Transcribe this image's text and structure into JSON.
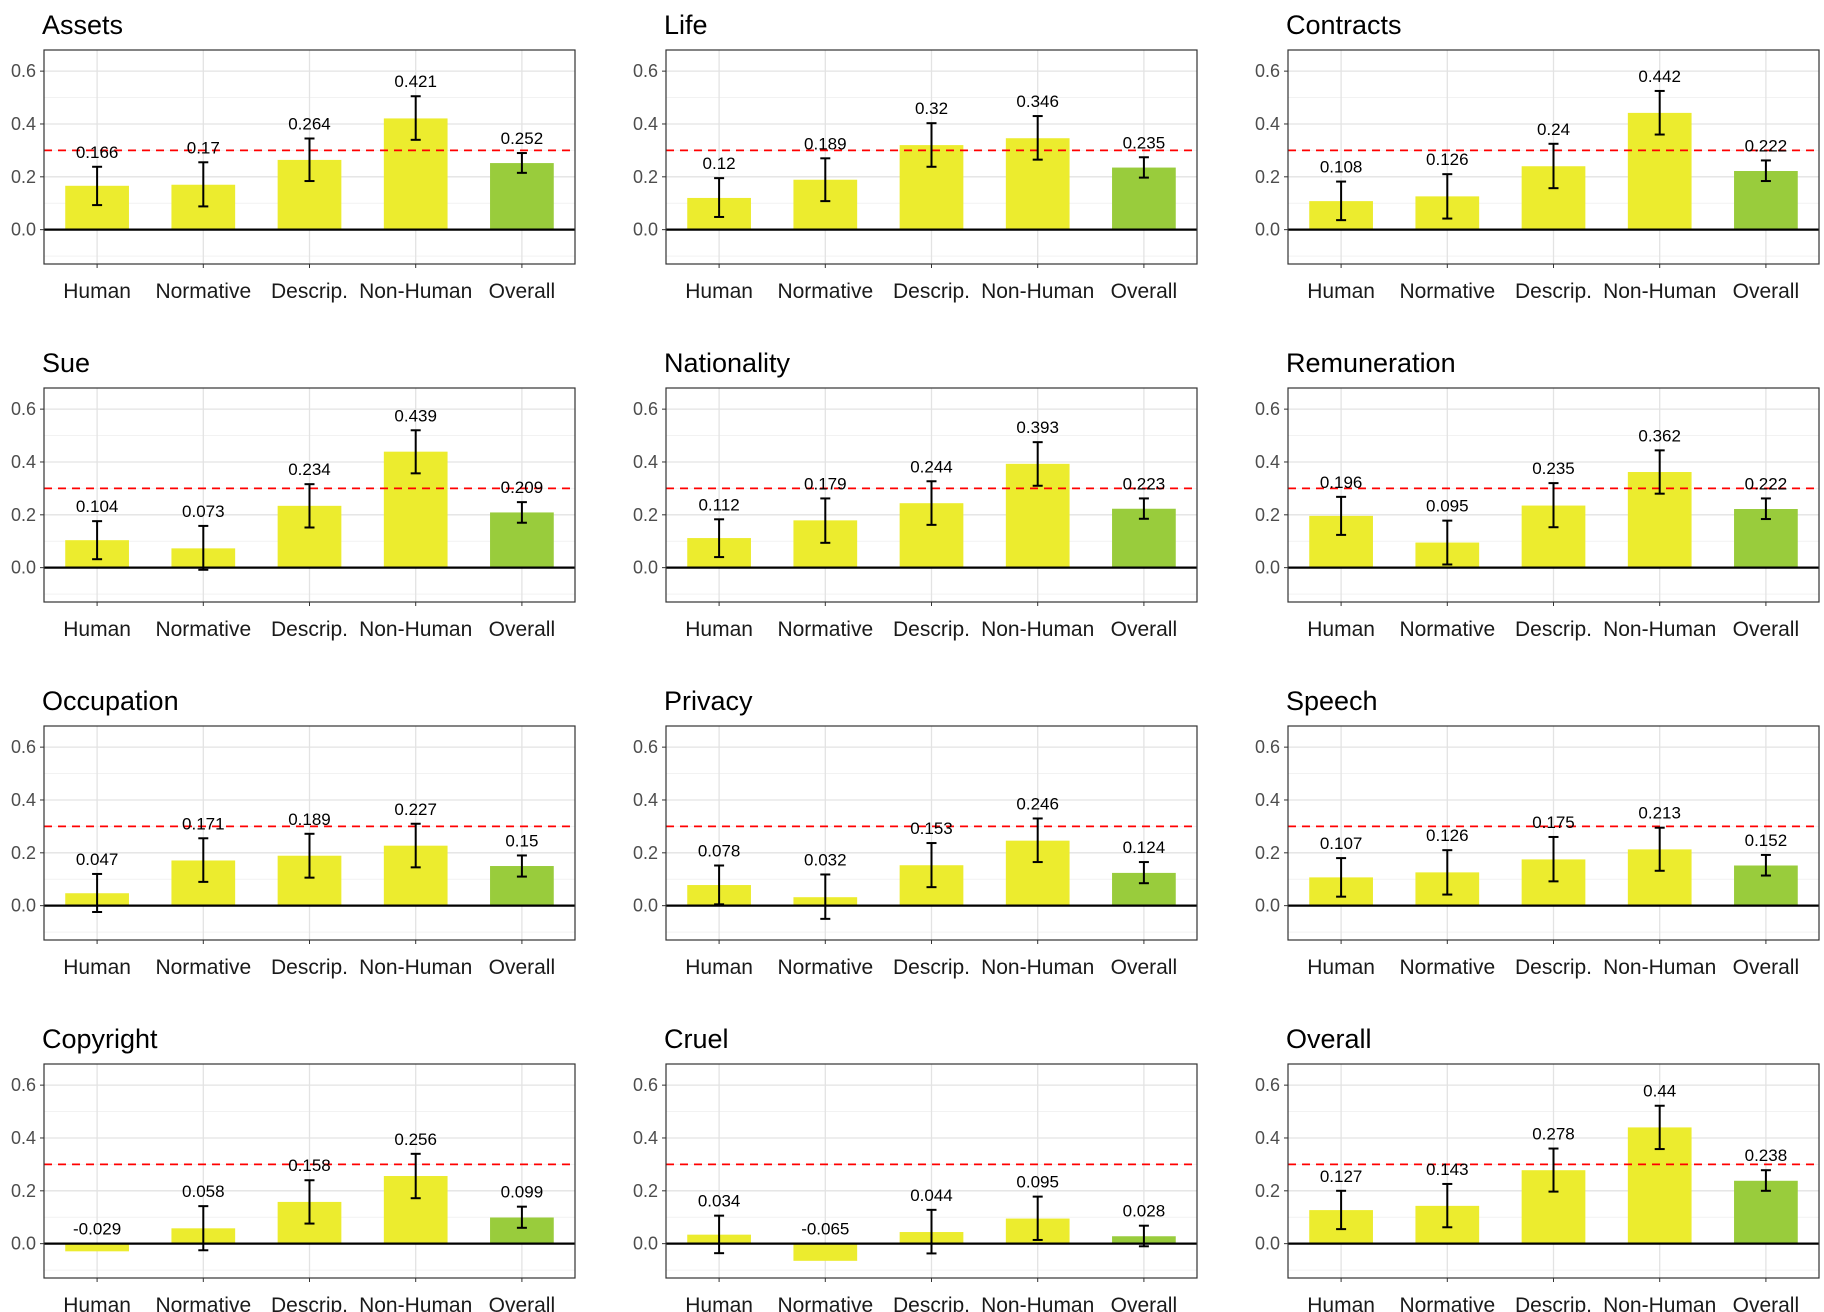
{
  "colors": {
    "bar_condition": "#ecec2e",
    "bar_overall": "#99cc3c",
    "reference_line": "#ff0000",
    "grid_major": "#e3e3e3",
    "grid_minor": "#f2f2f2",
    "panel_border": "#333333",
    "zero_line": "#000000",
    "error_bar": "#000000"
  },
  "chart_data": [
    {
      "type": "bar",
      "title": "Assets",
      "categories": [
        "Human",
        "Normative",
        "Descrip.",
        "Non-Human",
        "Overall"
      ],
      "values": [
        0.166,
        0.17,
        0.264,
        0.421,
        0.252
      ],
      "value_labels": [
        "0.166",
        "0.17",
        "0.264",
        "0.421",
        "0.252"
      ],
      "ci_low": [
        0.093,
        0.088,
        0.184,
        0.34,
        0.215
      ],
      "ci_high": [
        0.238,
        0.255,
        0.345,
        0.505,
        0.29
      ],
      "reference_y": 0.3,
      "ylim": [
        -0.13,
        0.68
      ],
      "yticks": [
        "0.0",
        "0.2",
        "0.4",
        "0.6"
      ],
      "grid": true
    },
    {
      "type": "bar",
      "title": "Life",
      "categories": [
        "Human",
        "Normative",
        "Descrip.",
        "Non-Human",
        "Overall"
      ],
      "values": [
        0.12,
        0.189,
        0.32,
        0.346,
        0.235
      ],
      "value_labels": [
        "0.12",
        "0.189",
        "0.32",
        "0.346",
        "0.235"
      ],
      "ci_low": [
        0.048,
        0.108,
        0.238,
        0.265,
        0.197
      ],
      "ci_high": [
        0.195,
        0.27,
        0.403,
        0.43,
        0.274
      ],
      "reference_y": 0.3,
      "ylim": [
        -0.13,
        0.68
      ],
      "yticks": [
        "0.0",
        "0.2",
        "0.4",
        "0.6"
      ],
      "grid": true
    },
    {
      "type": "bar",
      "title": "Contracts",
      "categories": [
        "Human",
        "Normative",
        "Descrip.",
        "Non-Human",
        "Overall"
      ],
      "values": [
        0.108,
        0.126,
        0.24,
        0.442,
        0.222
      ],
      "value_labels": [
        "0.108",
        "0.126",
        "0.24",
        "0.442",
        "0.222"
      ],
      "ci_low": [
        0.036,
        0.042,
        0.157,
        0.36,
        0.184
      ],
      "ci_high": [
        0.182,
        0.21,
        0.325,
        0.525,
        0.262
      ],
      "reference_y": 0.3,
      "ylim": [
        -0.13,
        0.68
      ],
      "yticks": [
        "0.0",
        "0.2",
        "0.4",
        "0.6"
      ],
      "grid": true
    },
    {
      "type": "bar",
      "title": "Sue",
      "categories": [
        "Human",
        "Normative",
        "Descrip.",
        "Non-Human",
        "Overall"
      ],
      "values": [
        0.104,
        0.073,
        0.234,
        0.439,
        0.209
      ],
      "value_labels": [
        "0.104",
        "0.073",
        "0.234",
        "0.439",
        "0.209"
      ],
      "ci_low": [
        0.032,
        -0.008,
        0.152,
        0.357,
        0.17
      ],
      "ci_high": [
        0.176,
        0.158,
        0.316,
        0.52,
        0.248
      ],
      "reference_y": 0.3,
      "ylim": [
        -0.13,
        0.68
      ],
      "yticks": [
        "0.0",
        "0.2",
        "0.4",
        "0.6"
      ],
      "grid": true
    },
    {
      "type": "bar",
      "title": "Nationality",
      "categories": [
        "Human",
        "Normative",
        "Descrip.",
        "Non-Human",
        "Overall"
      ],
      "values": [
        0.112,
        0.179,
        0.244,
        0.393,
        0.223
      ],
      "value_labels": [
        "0.112",
        "0.179",
        "0.244",
        "0.393",
        "0.223"
      ],
      "ci_low": [
        0.04,
        0.094,
        0.162,
        0.31,
        0.185
      ],
      "ci_high": [
        0.183,
        0.262,
        0.327,
        0.475,
        0.262
      ],
      "reference_y": 0.3,
      "ylim": [
        -0.13,
        0.68
      ],
      "yticks": [
        "0.0",
        "0.2",
        "0.4",
        "0.6"
      ],
      "grid": true
    },
    {
      "type": "bar",
      "title": "Remuneration",
      "categories": [
        "Human",
        "Normative",
        "Descrip.",
        "Non-Human",
        "Overall"
      ],
      "values": [
        0.196,
        0.095,
        0.235,
        0.362,
        0.222
      ],
      "value_labels": [
        "0.196",
        "0.095",
        "0.235",
        "0.362",
        "0.222"
      ],
      "ci_low": [
        0.124,
        0.012,
        0.153,
        0.28,
        0.184
      ],
      "ci_high": [
        0.268,
        0.178,
        0.32,
        0.444,
        0.262
      ],
      "reference_y": 0.3,
      "ylim": [
        -0.13,
        0.68
      ],
      "yticks": [
        "0.0",
        "0.2",
        "0.4",
        "0.6"
      ],
      "grid": true
    },
    {
      "type": "bar",
      "title": "Occupation",
      "categories": [
        "Human",
        "Normative",
        "Descrip.",
        "Non-Human",
        "Overall"
      ],
      "values": [
        0.047,
        0.171,
        0.189,
        0.227,
        0.15
      ],
      "value_labels": [
        "0.047",
        "0.171",
        "0.189",
        "0.227",
        "0.15"
      ],
      "ci_low": [
        -0.024,
        0.09,
        0.106,
        0.145,
        0.11
      ],
      "ci_high": [
        0.12,
        0.255,
        0.272,
        0.31,
        0.19
      ],
      "reference_y": 0.3,
      "ylim": [
        -0.13,
        0.68
      ],
      "yticks": [
        "0.0",
        "0.2",
        "0.4",
        "0.6"
      ],
      "grid": true
    },
    {
      "type": "bar",
      "title": "Privacy",
      "categories": [
        "Human",
        "Normative",
        "Descrip.",
        "Non-Human",
        "Overall"
      ],
      "values": [
        0.078,
        0.032,
        0.153,
        0.246,
        0.124
      ],
      "value_labels": [
        "0.078",
        "0.032",
        "0.153",
        "0.246",
        "0.124"
      ],
      "ci_low": [
        0.005,
        -0.05,
        0.07,
        0.165,
        0.085
      ],
      "ci_high": [
        0.152,
        0.118,
        0.237,
        0.33,
        0.165
      ],
      "reference_y": 0.3,
      "ylim": [
        -0.13,
        0.68
      ],
      "yticks": [
        "0.0",
        "0.2",
        "0.4",
        "0.6"
      ],
      "grid": true
    },
    {
      "type": "bar",
      "title": "Speech",
      "categories": [
        "Human",
        "Normative",
        "Descrip.",
        "Non-Human",
        "Overall"
      ],
      "values": [
        0.107,
        0.126,
        0.175,
        0.213,
        0.152
      ],
      "value_labels": [
        "0.107",
        "0.126",
        "0.175",
        "0.213",
        "0.152"
      ],
      "ci_low": [
        0.034,
        0.042,
        0.092,
        0.132,
        0.114
      ],
      "ci_high": [
        0.18,
        0.21,
        0.26,
        0.295,
        0.192
      ],
      "reference_y": 0.3,
      "ylim": [
        -0.13,
        0.68
      ],
      "yticks": [
        "0.0",
        "0.2",
        "0.4",
        "0.6"
      ],
      "grid": true
    },
    {
      "type": "bar",
      "title": "Copyright",
      "categories": [
        "Human",
        "Normative",
        "Descrip.",
        "Non-Human",
        "Overall"
      ],
      "values": [
        -0.029,
        0.058,
        0.158,
        0.256,
        0.099
      ],
      "value_labels": [
        "-0.029",
        "0.058",
        "0.158",
        "0.256",
        "0.099"
      ],
      "ci_low": [
        null,
        -0.025,
        0.076,
        0.172,
        0.06
      ],
      "ci_high": [
        null,
        0.142,
        0.24,
        0.34,
        0.14
      ],
      "reference_y": 0.3,
      "ylim": [
        -0.13,
        0.68
      ],
      "yticks": [
        "0.0",
        "0.2",
        "0.4",
        "0.6"
      ],
      "grid": true
    },
    {
      "type": "bar",
      "title": "Cruel",
      "categories": [
        "Human",
        "Normative",
        "Descrip.",
        "Non-Human",
        "Overall"
      ],
      "values": [
        0.034,
        -0.065,
        0.044,
        0.095,
        0.028
      ],
      "value_labels": [
        "0.034",
        "-0.065",
        "0.044",
        "0.095",
        "0.028"
      ],
      "ci_low": [
        -0.036,
        null,
        -0.037,
        0.014,
        -0.01
      ],
      "ci_high": [
        0.106,
        null,
        0.128,
        0.178,
        0.068
      ],
      "reference_y": 0.3,
      "ylim": [
        -0.13,
        0.68
      ],
      "yticks": [
        "0.0",
        "0.2",
        "0.4",
        "0.6"
      ],
      "grid": true
    },
    {
      "type": "bar",
      "title": "Overall",
      "categories": [
        "Human",
        "Normative",
        "Descrip.",
        "Non-Human",
        "Overall"
      ],
      "values": [
        0.127,
        0.143,
        0.278,
        0.44,
        0.238
      ],
      "value_labels": [
        "0.127",
        "0.143",
        "0.278",
        "0.44",
        "0.238"
      ],
      "ci_low": [
        0.055,
        0.062,
        0.197,
        0.358,
        0.2
      ],
      "ci_high": [
        0.2,
        0.226,
        0.36,
        0.522,
        0.278
      ],
      "reference_y": 0.3,
      "ylim": [
        -0.13,
        0.68
      ],
      "yticks": [
        "0.0",
        "0.2",
        "0.4",
        "0.6"
      ],
      "grid": true
    }
  ]
}
